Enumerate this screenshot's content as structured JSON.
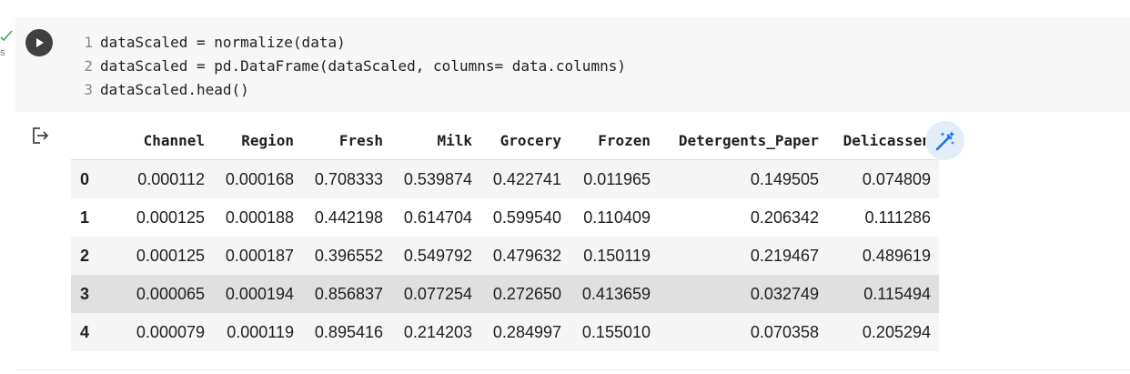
{
  "cell": {
    "exec_time": "s",
    "code_lines": [
      {
        "num": "1",
        "text": "dataScaled = normalize(data)"
      },
      {
        "num": "2",
        "text": "dataScaled = pd.DataFrame(dataScaled, columns= data.columns)"
      },
      {
        "num": "3",
        "text": "dataScaled.head()"
      }
    ]
  },
  "output": {
    "columns": [
      "Channel",
      "Region",
      "Fresh",
      "Milk",
      "Grocery",
      "Frozen",
      "Detergents_Paper",
      "Delicassen"
    ],
    "rows": [
      {
        "index": "0",
        "values": [
          "0.000112",
          "0.000168",
          "0.708333",
          "0.539874",
          "0.422741",
          "0.011965",
          "0.149505",
          "0.074809"
        ]
      },
      {
        "index": "1",
        "values": [
          "0.000125",
          "0.000188",
          "0.442198",
          "0.614704",
          "0.599540",
          "0.110409",
          "0.206342",
          "0.111286"
        ]
      },
      {
        "index": "2",
        "values": [
          "0.000125",
          "0.000187",
          "0.396552",
          "0.549792",
          "0.479632",
          "0.150119",
          "0.219467",
          "0.489619"
        ]
      },
      {
        "index": "3",
        "values": [
          "0.000065",
          "0.000194",
          "0.856837",
          "0.077254",
          "0.272650",
          "0.413659",
          "0.032749",
          "0.115494"
        ]
      },
      {
        "index": "4",
        "values": [
          "0.000079",
          "0.000119",
          "0.895416",
          "0.214203",
          "0.284997",
          "0.155010",
          "0.070358",
          "0.205294"
        ]
      }
    ]
  },
  "icons": {
    "run": "play-icon",
    "output": "output-redirect-icon",
    "wand": "magic-wand-icon",
    "status": "checkmark-icon"
  },
  "colors": {
    "run_button": "#404040",
    "wand_bg": "#e3ecf9",
    "wand_icon": "#1a73e8",
    "check": "#34a853"
  }
}
